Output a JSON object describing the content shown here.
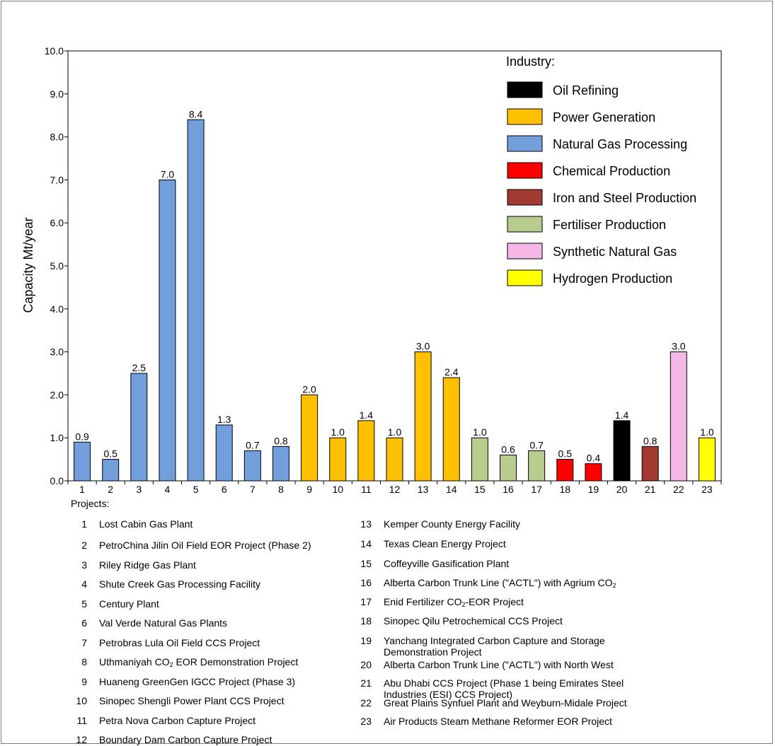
{
  "chart_data": {
    "type": "bar",
    "ylabel": "Capacity Mt/year",
    "xlabel": "Projects:",
    "ylim": [
      0,
      10
    ],
    "yticks": [
      "0.0",
      "1.0",
      "2.0",
      "3.0",
      "4.0",
      "5.0",
      "6.0",
      "7.0",
      "8.0",
      "9.0",
      "10.0"
    ],
    "categories": [
      "1",
      "2",
      "3",
      "4",
      "5",
      "6",
      "7",
      "8",
      "9",
      "10",
      "11",
      "12",
      "13",
      "14",
      "15",
      "16",
      "17",
      "18",
      "19",
      "20",
      "21",
      "22",
      "23"
    ],
    "values": [
      0.9,
      0.5,
      2.5,
      7.0,
      8.4,
      1.3,
      0.7,
      0.8,
      2.0,
      1.0,
      1.4,
      1.0,
      3.0,
      2.4,
      1.0,
      0.6,
      0.7,
      0.5,
      0.4,
      1.4,
      0.8,
      3.0,
      1.0
    ],
    "value_labels": [
      "0.9",
      "0.5",
      "2.5",
      "7.0",
      "8.4",
      "1.3",
      "0.7",
      "0.8",
      "2.0",
      "1.0",
      "1.4",
      "1.0",
      "3.0",
      "2.4",
      "1.0",
      "0.6",
      "0.7",
      "0.5",
      "0.4",
      "1.4",
      "0.8",
      "3.0",
      "1.0"
    ],
    "bar_industry": [
      2,
      2,
      2,
      2,
      2,
      2,
      2,
      2,
      1,
      1,
      1,
      1,
      1,
      1,
      5,
      5,
      5,
      3,
      3,
      0,
      4,
      6,
      7
    ],
    "legend_title": "Industry:",
    "legend_position": "top-right",
    "legend": [
      {
        "name": "Oil Refining",
        "color": "#000000"
      },
      {
        "name": "Power Generation",
        "color": "#ffc000"
      },
      {
        "name": "Natural Gas Processing",
        "color": "#729fdb"
      },
      {
        "name": "Chemical Production",
        "color": "#ff0000"
      },
      {
        "name": "Iron and Steel Production",
        "color": "#a03a32"
      },
      {
        "name": "Fertiliser Production",
        "color": "#b8cc8e"
      },
      {
        "name": "Synthetic Natural Gas",
        "color": "#f5b8e6"
      },
      {
        "name": "Hydrogen Production",
        "color": "#ffff00"
      }
    ],
    "grid": false
  },
  "projects": [
    {
      "num": "1",
      "name": "Lost Cabin Gas Plant"
    },
    {
      "num": "2",
      "name": "PetroChina Jilin Oil Field EOR Project (Phase 2)"
    },
    {
      "num": "3",
      "name": "Riley Ridge Gas Plant"
    },
    {
      "num": "4",
      "name": "Shute Creek Gas Processing Facility"
    },
    {
      "num": "5",
      "name": "Century Plant"
    },
    {
      "num": "6",
      "name": "Val Verde Natural Gas Plants"
    },
    {
      "num": "7",
      "name": "Petrobras Lula Oil Field CCS Project"
    },
    {
      "num": "8",
      "name": "Uthmaniyah CO₂ EOR Demonstration Project"
    },
    {
      "num": "9",
      "name": "Huaneng GreenGen IGCC Project (Phase 3)"
    },
    {
      "num": "10",
      "name": "Sinopec Shengli Power Plant CCS Project"
    },
    {
      "num": "11",
      "name": "Petra Nova Carbon Capture Project"
    },
    {
      "num": "12",
      "name": "Boundary Dam Carbon Capture Project"
    },
    {
      "num": "13",
      "name": "Kemper County Energy Facility"
    },
    {
      "num": "14",
      "name": "Texas Clean Energy Project"
    },
    {
      "num": "15",
      "name": "Coffeyville Gasification Plant"
    },
    {
      "num": "16",
      "name": "Alberta Carbon Trunk Line (\"ACTL\") with Agrium CO₂"
    },
    {
      "num": "17",
      "name": "Enid Fertilizer CO₂-EOR Project"
    },
    {
      "num": "18",
      "name": "Sinopec Qilu Petrochemical CCS Project"
    },
    {
      "num": "19",
      "name": "Yanchang Integrated Carbon Capture and Storage\nDemonstration Project"
    },
    {
      "num": "20",
      "name": "Alberta Carbon Trunk Line (\"ACTL\") with North West"
    },
    {
      "num": "21",
      "name": "Abu Dhabi CCS Project (Phase 1 being Emirates Steel\nIndustries (ESI) CCS Project)"
    },
    {
      "num": "22",
      "name": "Great Plains Synfuel Plant and Weyburn-Midale Project"
    },
    {
      "num": "23",
      "name": "Air Products Steam Methane Reformer EOR Project"
    }
  ]
}
